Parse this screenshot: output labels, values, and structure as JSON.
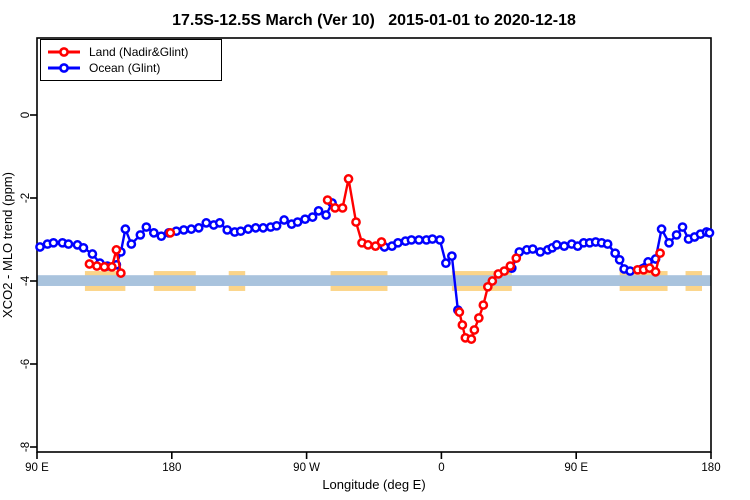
{
  "title": "17.5S-12.5S March (Ver 10)   2015-01-01 to 2020-12-18",
  "chart_data": {
    "type": "line",
    "title": "17.5S-12.5S March (Ver 10)   2015-01-01 to 2020-12-18",
    "xlabel": "Longitude (deg E)",
    "ylabel": "XCO2 - MLO trend (ppm)",
    "x_axis": {
      "min": 90,
      "max": 540,
      "ticks": [
        {
          "value": 90,
          "label": "90 E"
        },
        {
          "value": 180,
          "label": "180"
        },
        {
          "value": 270,
          "label": "90 W"
        },
        {
          "value": 360,
          "label": "0"
        },
        {
          "value": 450,
          "label": "90 E"
        },
        {
          "value": 540,
          "label": "180"
        }
      ]
    },
    "y_axis": {
      "min": -8.12,
      "max": 1.86,
      "ticks": [
        {
          "value": 0,
          "label": "0"
        },
        {
          "value": -2,
          "label": "-2"
        },
        {
          "value": -4,
          "label": "-4"
        },
        {
          "value": -6,
          "label": "-6"
        },
        {
          "value": -8,
          "label": "-8"
        }
      ]
    },
    "coverage_band": {
      "ocean_color": "#A9C3DD",
      "land_color": "#FBD489",
      "band_value_top": -3.86,
      "band_value_bottom": -4.12,
      "land_value_top": -3.76,
      "land_value_bottom": -4.24,
      "land_lon_ranges": [
        [
          122,
          149
        ],
        [
          168,
          196
        ],
        [
          218,
          229
        ],
        [
          286,
          324
        ],
        [
          367,
          407
        ],
        [
          479,
          511
        ],
        [
          523,
          534
        ]
      ]
    },
    "legend": {
      "position": "top-left"
    },
    "series": [
      {
        "name": "Land (Nadir&Glint)",
        "color": "#FF0000",
        "segments": [
          [
            [
              125,
              -3.59
            ],
            [
              130,
              -3.64
            ],
            [
              135,
              -3.66
            ],
            [
              140,
              -3.66
            ],
            [
              143,
              -3.25
            ],
            [
              146,
              -3.81
            ]
          ],
          [
            [
              179,
              -2.84
            ]
          ],
          [
            [
              284,
              -2.05
            ],
            [
              289,
              -2.24
            ],
            [
              294,
              -2.24
            ],
            [
              298,
              -1.54
            ],
            [
              303,
              -2.58
            ],
            [
              307,
              -3.08
            ],
            [
              311,
              -3.13
            ],
            [
              316,
              -3.16
            ],
            [
              320,
              -3.06
            ]
          ],
          [
            [
              372,
              -4.75
            ],
            [
              374,
              -5.06
            ],
            [
              376,
              -5.37
            ],
            [
              380,
              -5.4
            ],
            [
              382,
              -5.18
            ],
            [
              385,
              -4.89
            ],
            [
              388,
              -4.58
            ],
            [
              391,
              -4.14
            ],
            [
              394,
              -4.0
            ],
            [
              398,
              -3.83
            ],
            [
              402,
              -3.76
            ],
            [
              406,
              -3.64
            ],
            [
              410,
              -3.45
            ]
          ],
          [
            [
              491,
              -3.73
            ],
            [
              495,
              -3.73
            ],
            [
              499,
              -3.69
            ],
            [
              503,
              -3.78
            ],
            [
              506,
              -3.33
            ]
          ]
        ]
      },
      {
        "name": "Ocean (Glint)",
        "color": "#0000FF",
        "segments": [
          [
            [
              92,
              -3.18
            ],
            [
              97,
              -3.11
            ],
            [
              101,
              -3.08
            ],
            [
              107,
              -3.08
            ],
            [
              111,
              -3.11
            ],
            [
              117,
              -3.13
            ],
            [
              121,
              -3.2
            ],
            [
              127,
              -3.35
            ],
            [
              132,
              -3.57
            ],
            [
              137,
              -3.64
            ],
            [
              143,
              -3.61
            ],
            [
              146,
              -3.3
            ],
            [
              149,
              -2.75
            ],
            [
              153,
              -3.11
            ],
            [
              159,
              -2.89
            ],
            [
              163,
              -2.7
            ],
            [
              168,
              -2.84
            ],
            [
              173,
              -2.92
            ],
            [
              178,
              -2.84
            ],
            [
              183,
              -2.8
            ],
            [
              188,
              -2.77
            ],
            [
              193,
              -2.75
            ],
            [
              198,
              -2.72
            ],
            [
              203,
              -2.6
            ],
            [
              208,
              -2.65
            ],
            [
              212,
              -2.6
            ],
            [
              217,
              -2.77
            ],
            [
              222,
              -2.82
            ],
            [
              226,
              -2.8
            ],
            [
              231,
              -2.75
            ],
            [
              236,
              -2.72
            ],
            [
              241,
              -2.72
            ],
            [
              246,
              -2.7
            ],
            [
              250,
              -2.67
            ],
            [
              255,
              -2.53
            ],
            [
              260,
              -2.63
            ],
            [
              264,
              -2.58
            ],
            [
              269,
              -2.51
            ],
            [
              274,
              -2.46
            ],
            [
              278,
              -2.31
            ],
            [
              283,
              -2.41
            ],
            [
              287,
              -2.12
            ]
          ],
          [
            [
              322,
              -3.18
            ],
            [
              327,
              -3.16
            ],
            [
              331,
              -3.08
            ],
            [
              336,
              -3.04
            ],
            [
              340,
              -3.01
            ],
            [
              345,
              -3.01
            ],
            [
              350,
              -3.01
            ],
            [
              354,
              -2.99
            ],
            [
              359,
              -3.01
            ],
            [
              363,
              -3.57
            ],
            [
              367,
              -3.4
            ],
            [
              371,
              -4.7
            ]
          ],
          [
            [
              407,
              -3.69
            ],
            [
              412,
              -3.3
            ],
            [
              417,
              -3.25
            ],
            [
              421,
              -3.23
            ],
            [
              426,
              -3.3
            ],
            [
              431,
              -3.25
            ],
            [
              434,
              -3.2
            ],
            [
              437,
              -3.13
            ],
            [
              442,
              -3.16
            ],
            [
              447,
              -3.11
            ],
            [
              451,
              -3.16
            ],
            [
              455,
              -3.08
            ],
            [
              459,
              -3.08
            ],
            [
              463,
              -3.06
            ],
            [
              467,
              -3.08
            ],
            [
              471,
              -3.11
            ],
            [
              476,
              -3.33
            ],
            [
              479,
              -3.49
            ],
            [
              482,
              -3.71
            ],
            [
              486,
              -3.76
            ],
            [
              498,
              -3.54
            ],
            [
              503,
              -3.47
            ],
            [
              507,
              -2.75
            ],
            [
              512,
              -3.08
            ],
            [
              517,
              -2.89
            ],
            [
              521,
              -2.7
            ],
            [
              525,
              -2.99
            ],
            [
              529,
              -2.94
            ],
            [
              533,
              -2.87
            ],
            [
              537,
              -2.82
            ],
            [
              539,
              -2.84
            ]
          ]
        ]
      }
    ]
  }
}
